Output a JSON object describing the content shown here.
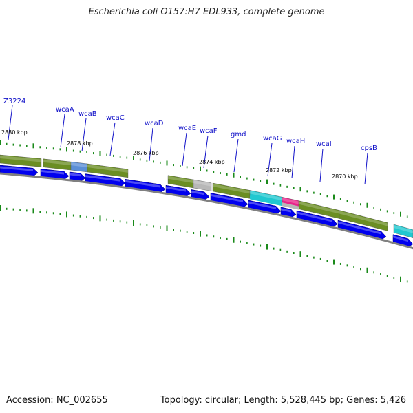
{
  "title": "Escherichia coli O157:H7 EDL933, complete genome",
  "footer": {
    "accession": "Accession: NC_002655",
    "stats": "Topology: circular; Length: 5,528,445 bp; Genes: 5,426"
  },
  "colors": {
    "forward_cds": "#0000ee",
    "feature_olive": "#6b8e23",
    "feature_blue": "#5b8fd6",
    "feature_gray": "#b8b8b8",
    "feature_cyan": "#20c8d0",
    "feature_magenta": "#e8248a",
    "backbone": "#808080",
    "ticks": "#1a8a1a",
    "gene_label": "#1010c8"
  },
  "chart_data": {
    "type": "genome_map",
    "scale_labels": [
      "2880 kbp",
      "2878 kbp",
      "2876 kbp",
      "2874 kbp",
      "2872 kbp",
      "2870 kbp"
    ],
    "genes": [
      "Z3224",
      "wcaA",
      "wcaB",
      "wcaC",
      "wcaD",
      "wcaE",
      "wcaF",
      "gmd",
      "wcaG",
      "wcaH",
      "wcaI",
      "cpsB"
    ]
  }
}
